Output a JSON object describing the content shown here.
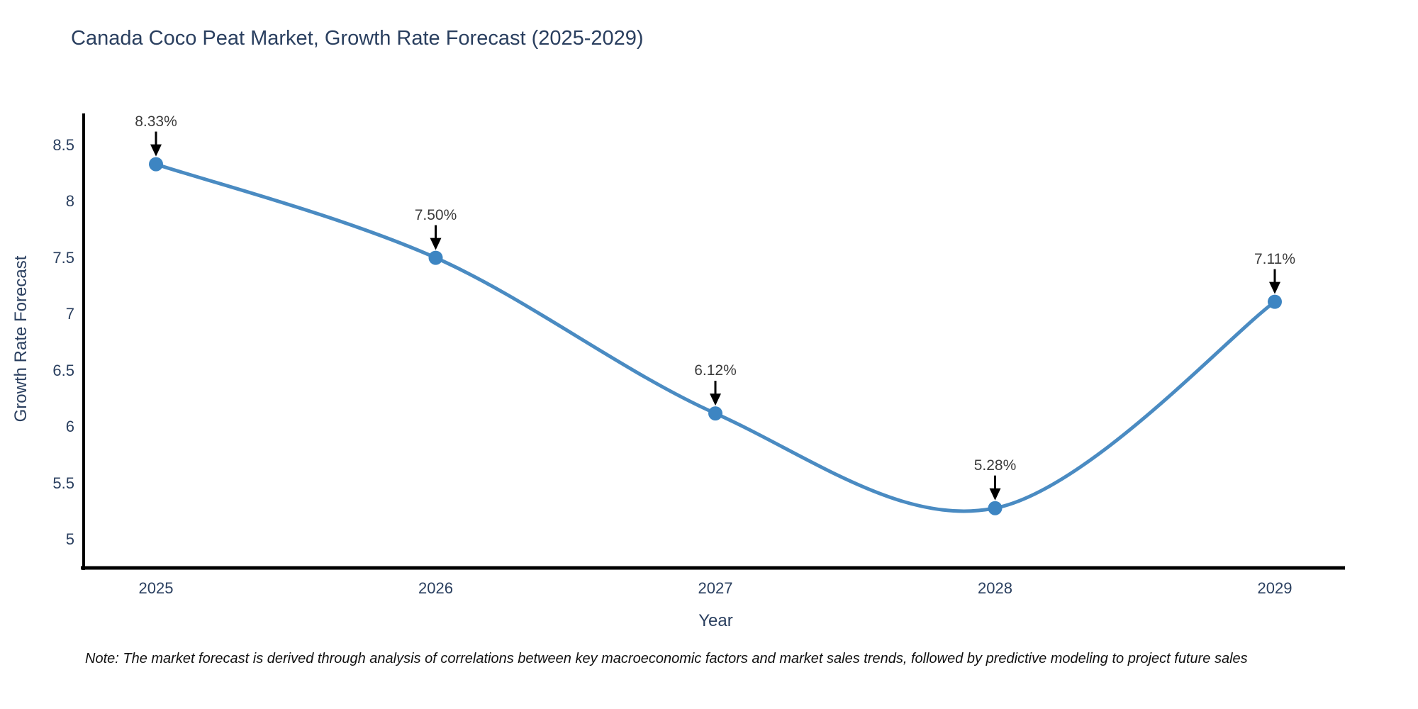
{
  "title": "Canada Coco Peat Market, Growth Rate Forecast (2025-2029)",
  "note": "Note: The market forecast is derived through analysis of correlations between key macroeconomic factors and market sales trends, followed by predictive modeling to project future sales",
  "colors": {
    "title_text": "#2a3f5f",
    "axis_text": "#2a3f5f",
    "annotation_text": "#3b3b3b",
    "axis_line": "#000000",
    "arrow": "#000000",
    "line": "#4a8bc2",
    "marker_fill": "#3d85c2",
    "background": "#ffffff"
  },
  "chart_data": {
    "type": "line",
    "line_shape": "spline",
    "title": "Canada Coco Peat Market, Growth Rate Forecast (2025-2029)",
    "xlabel": "Year",
    "ylabel": "Growth Rate Forecast",
    "x": [
      2025,
      2026,
      2027,
      2028,
      2029
    ],
    "xtick_labels": [
      "2025",
      "2026",
      "2027",
      "2028",
      "2029"
    ],
    "values": [
      8.33,
      7.5,
      6.12,
      5.28,
      7.11
    ],
    "point_labels": [
      "8.33%",
      "7.50%",
      "6.12%",
      "5.28%",
      "7.11%"
    ],
    "yticks": [
      5,
      5.5,
      6,
      6.5,
      7,
      7.5,
      8,
      8.5
    ],
    "ytick_labels": [
      "5",
      "5.5",
      "6",
      "6.5",
      "7",
      "7.5",
      "8",
      "8.5"
    ],
    "ylim": [
      4.75,
      8.78
    ],
    "grid": false,
    "legend": "none",
    "annotations": "value labels with down arrows at each data point"
  }
}
